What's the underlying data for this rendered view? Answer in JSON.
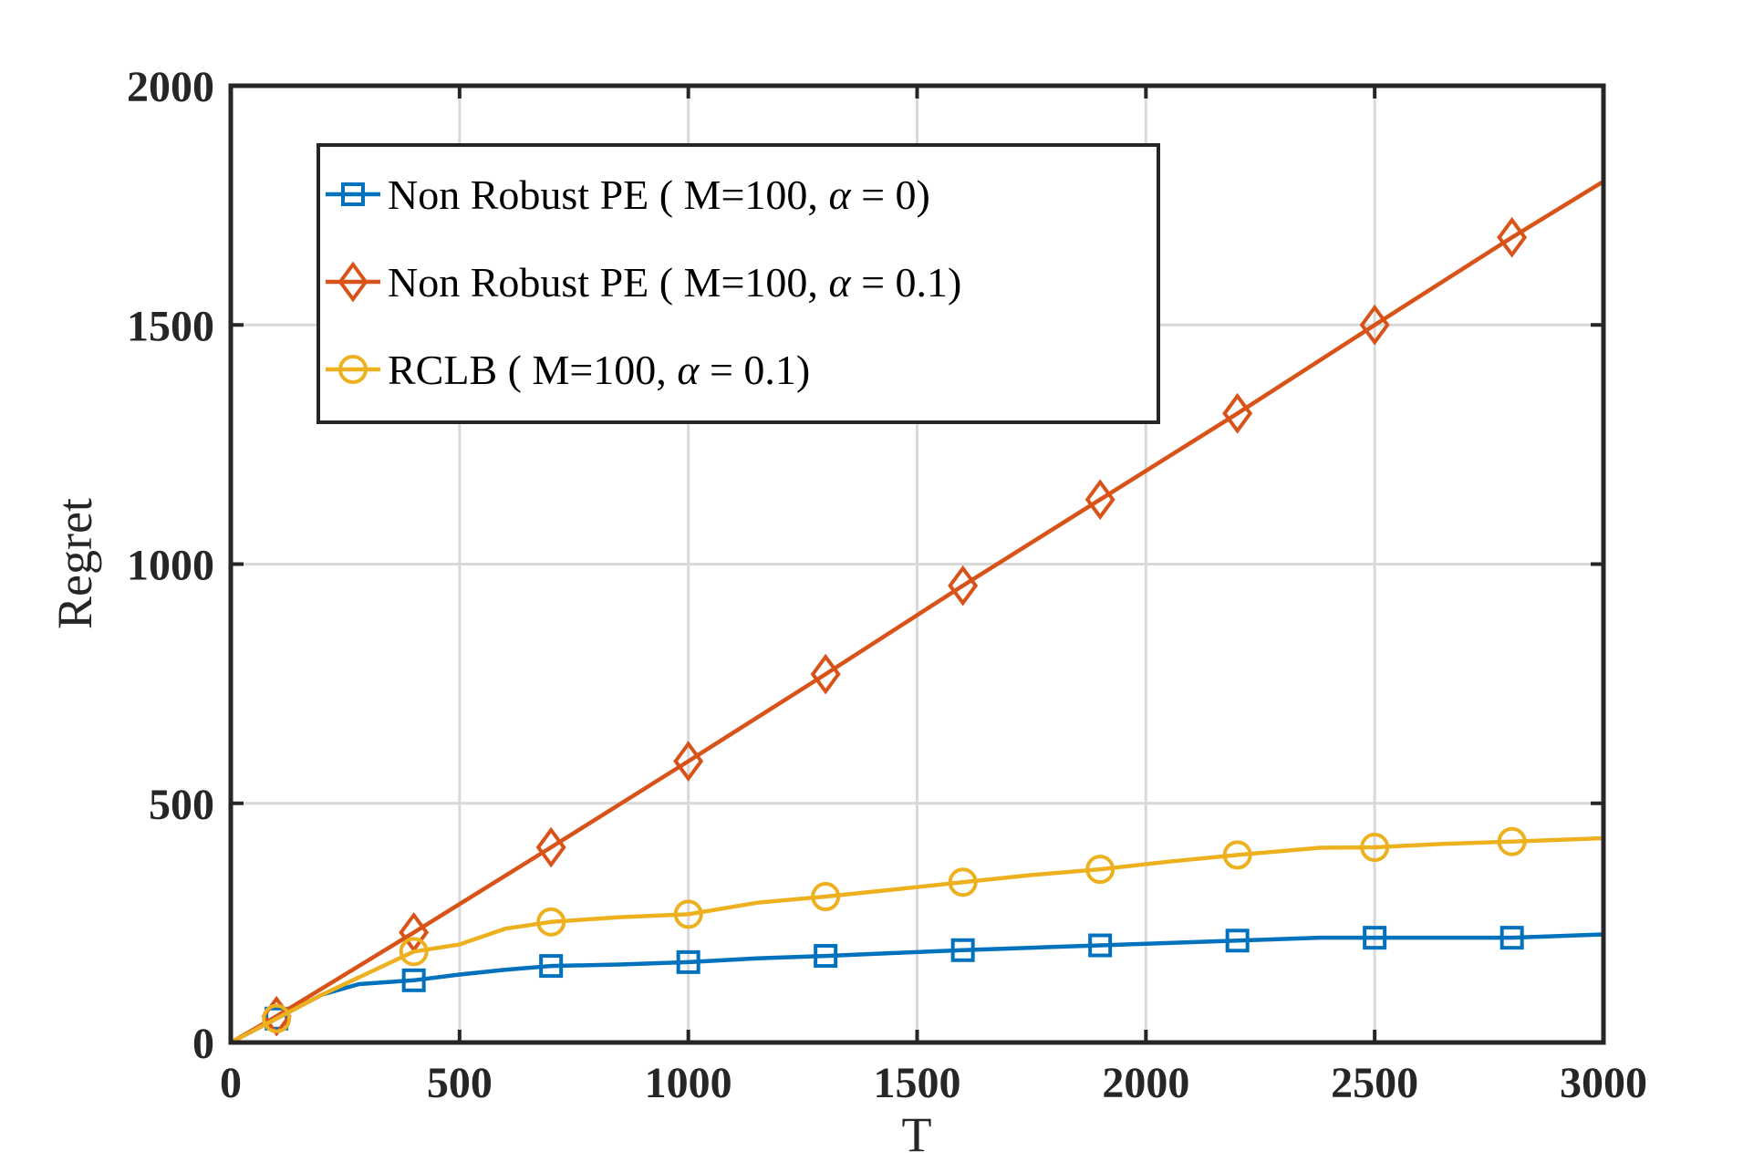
{
  "colors": {
    "series_blue": "#0072BD",
    "series_orange": "#D95319",
    "series_yellow": "#EDB120",
    "axes": "#262626",
    "grid": "#d9d9d9"
  },
  "chart_data": {
    "type": "line",
    "title": "",
    "xlabel": "T",
    "ylabel": "Regret",
    "xlim": [
      0,
      3000
    ],
    "ylim": [
      0,
      2000
    ],
    "grid": true,
    "legend_position": "top-left",
    "xticks": [
      0,
      500,
      1000,
      1500,
      2000,
      2500,
      3000
    ],
    "yticks": [
      0,
      500,
      1000,
      1500,
      2000
    ],
    "xtick_labels": [
      "0",
      "500",
      "1000",
      "1500",
      "2000",
      "2500",
      "3000"
    ],
    "ytick_labels": [
      "0",
      "500",
      "1000",
      "1500",
      "2000"
    ],
    "series": [
      {
        "name": "Non Robust PE ( M=100, α = 0)",
        "legend_text": "Non Robust PE ( M=100, ",
        "legend_alpha": "α",
        "legend_eq": " = 0)",
        "color": "#0072BD",
        "marker": "square",
        "x": [
          0,
          100,
          200,
          280,
          400,
          500,
          600,
          700,
          850,
          1000,
          1150,
          1300,
          1450,
          1600,
          1750,
          1900,
          2050,
          2200,
          2380,
          2500,
          2650,
          2800,
          3000
        ],
        "y": [
          0,
          50,
          100,
          122,
          130,
          142,
          152,
          160,
          163,
          168,
          176,
          181,
          187,
          193,
          198,
          203,
          208,
          213,
          219,
          219,
          219,
          219,
          226
        ],
        "marker_x": [
          100,
          400,
          700,
          1000,
          1300,
          1600,
          1900,
          2200,
          2500,
          2800
        ],
        "marker_y": [
          50,
          130,
          160,
          168,
          181,
          193,
          203,
          213,
          219,
          219
        ]
      },
      {
        "name": "Non Robust PE ( M=100, α = 0.1)",
        "legend_text": "Non Robust PE ( M=100, ",
        "legend_alpha": "α",
        "legend_eq": " = 0.1)",
        "color": "#D95319",
        "marker": "diamond",
        "x": [
          0,
          100,
          400,
          700,
          1000,
          1300,
          1600,
          1900,
          2200,
          2500,
          2800,
          3000
        ],
        "y": [
          0,
          55,
          230,
          408,
          588,
          770,
          955,
          1135,
          1315,
          1500,
          1683,
          1800
        ],
        "marker_x": [
          100,
          400,
          700,
          1000,
          1300,
          1600,
          1900,
          2200,
          2500,
          2800
        ],
        "marker_y": [
          55,
          230,
          408,
          588,
          770,
          955,
          1135,
          1315,
          1500,
          1683
        ]
      },
      {
        "name": "RCLB ( M=100, α = 0.1)",
        "legend_text": "RCLB ( M=100, ",
        "legend_alpha": "α",
        "legend_eq": " = 0.1)",
        "color": "#EDB120",
        "marker": "circle",
        "x": [
          0,
          100,
          200,
          300,
          400,
          500,
          600,
          700,
          850,
          1000,
          1150,
          1300,
          1450,
          1600,
          1750,
          1900,
          2050,
          2200,
          2380,
          2500,
          2650,
          2800,
          3000
        ],
        "y": [
          0,
          50,
          100,
          145,
          190,
          205,
          238,
          252,
          262,
          268,
          292,
          305,
          320,
          335,
          350,
          362,
          378,
          392,
          407,
          408,
          415,
          420,
          427
        ],
        "marker_x": [
          100,
          400,
          700,
          1000,
          1300,
          1600,
          1900,
          2200,
          2500,
          2800
        ],
        "marker_y": [
          50,
          190,
          252,
          268,
          305,
          335,
          362,
          392,
          408,
          420
        ]
      }
    ]
  }
}
